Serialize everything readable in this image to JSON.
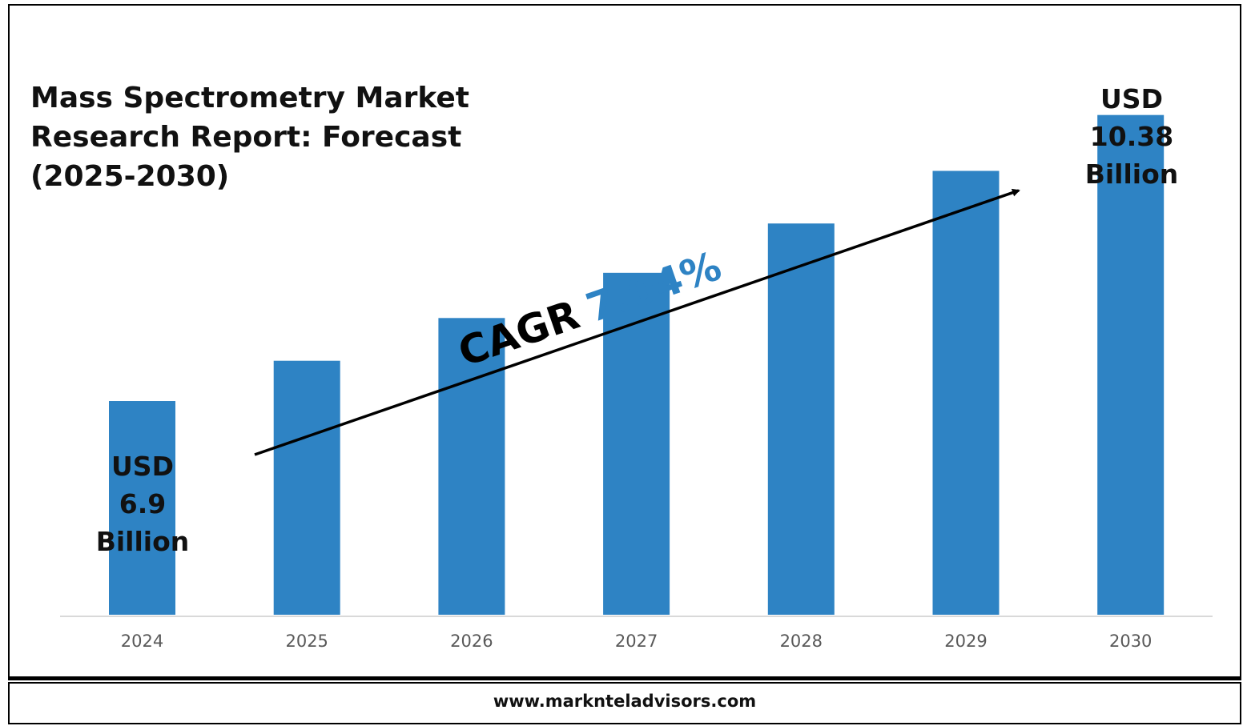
{
  "footer": {
    "url": "www.marknteladvisors.com"
  },
  "colors": {
    "bar": "#2E83C4",
    "cagr_value": "#2E83C4",
    "text": "#111111"
  },
  "chart_data": {
    "type": "bar",
    "title": "Mass Spectrometry Market\nResearch Report: Forecast\n(2025-2030)",
    "categories": [
      "2024",
      "2025",
      "2026",
      "2027",
      "2028",
      "2029",
      "2030"
    ],
    "values": [
      6.9,
      7.39,
      7.91,
      8.46,
      9.06,
      9.7,
      10.38
    ],
    "unit": "USD Billion",
    "ylim": [
      4.3,
      11
    ],
    "grid": false,
    "annotations": {
      "start": [
        "USD",
        "6.9",
        "Billion"
      ],
      "end": [
        "USD",
        "10.38",
        "Billion"
      ],
      "cagr_label": "CAGR",
      "cagr_value": "7.04%"
    }
  }
}
